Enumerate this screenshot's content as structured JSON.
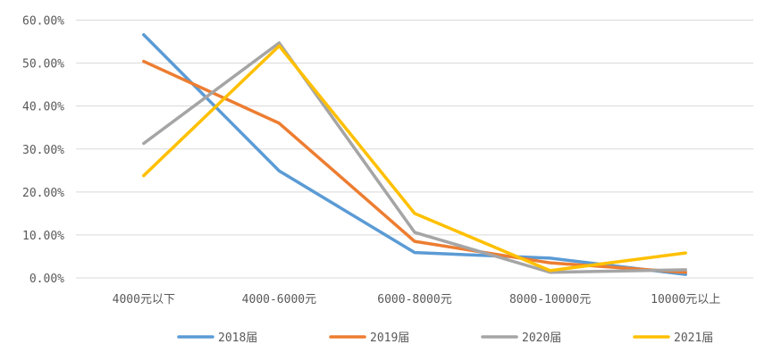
{
  "chart_data": {
    "type": "line",
    "categories": [
      "4000元以下",
      "4000-6000元",
      "6000-8000元",
      "8000-10000元",
      "10000元以上"
    ],
    "series": [
      {
        "name": "2018届",
        "color": "#5B9BD5",
        "values": [
          56.6,
          24.9,
          5.9,
          4.6,
          0.8
        ]
      },
      {
        "name": "2019届",
        "color": "#ED7D31",
        "values": [
          50.4,
          36.0,
          8.5,
          3.5,
          1.3
        ]
      },
      {
        "name": "2020届",
        "color": "#A5A5A5",
        "values": [
          31.3,
          54.7,
          10.6,
          1.3,
          1.9
        ]
      },
      {
        "name": "2021届",
        "color": "#FFC000",
        "values": [
          23.8,
          54.0,
          15.0,
          1.7,
          5.8
        ]
      }
    ],
    "yticks": [
      "0.00%",
      "10.00%",
      "20.00%",
      "30.00%",
      "40.00%",
      "50.00%",
      "60.00%"
    ],
    "ylim": [
      0,
      60
    ],
    "grid": true,
    "legend": "bottom",
    "title": "",
    "xlabel": "",
    "ylabel": ""
  }
}
